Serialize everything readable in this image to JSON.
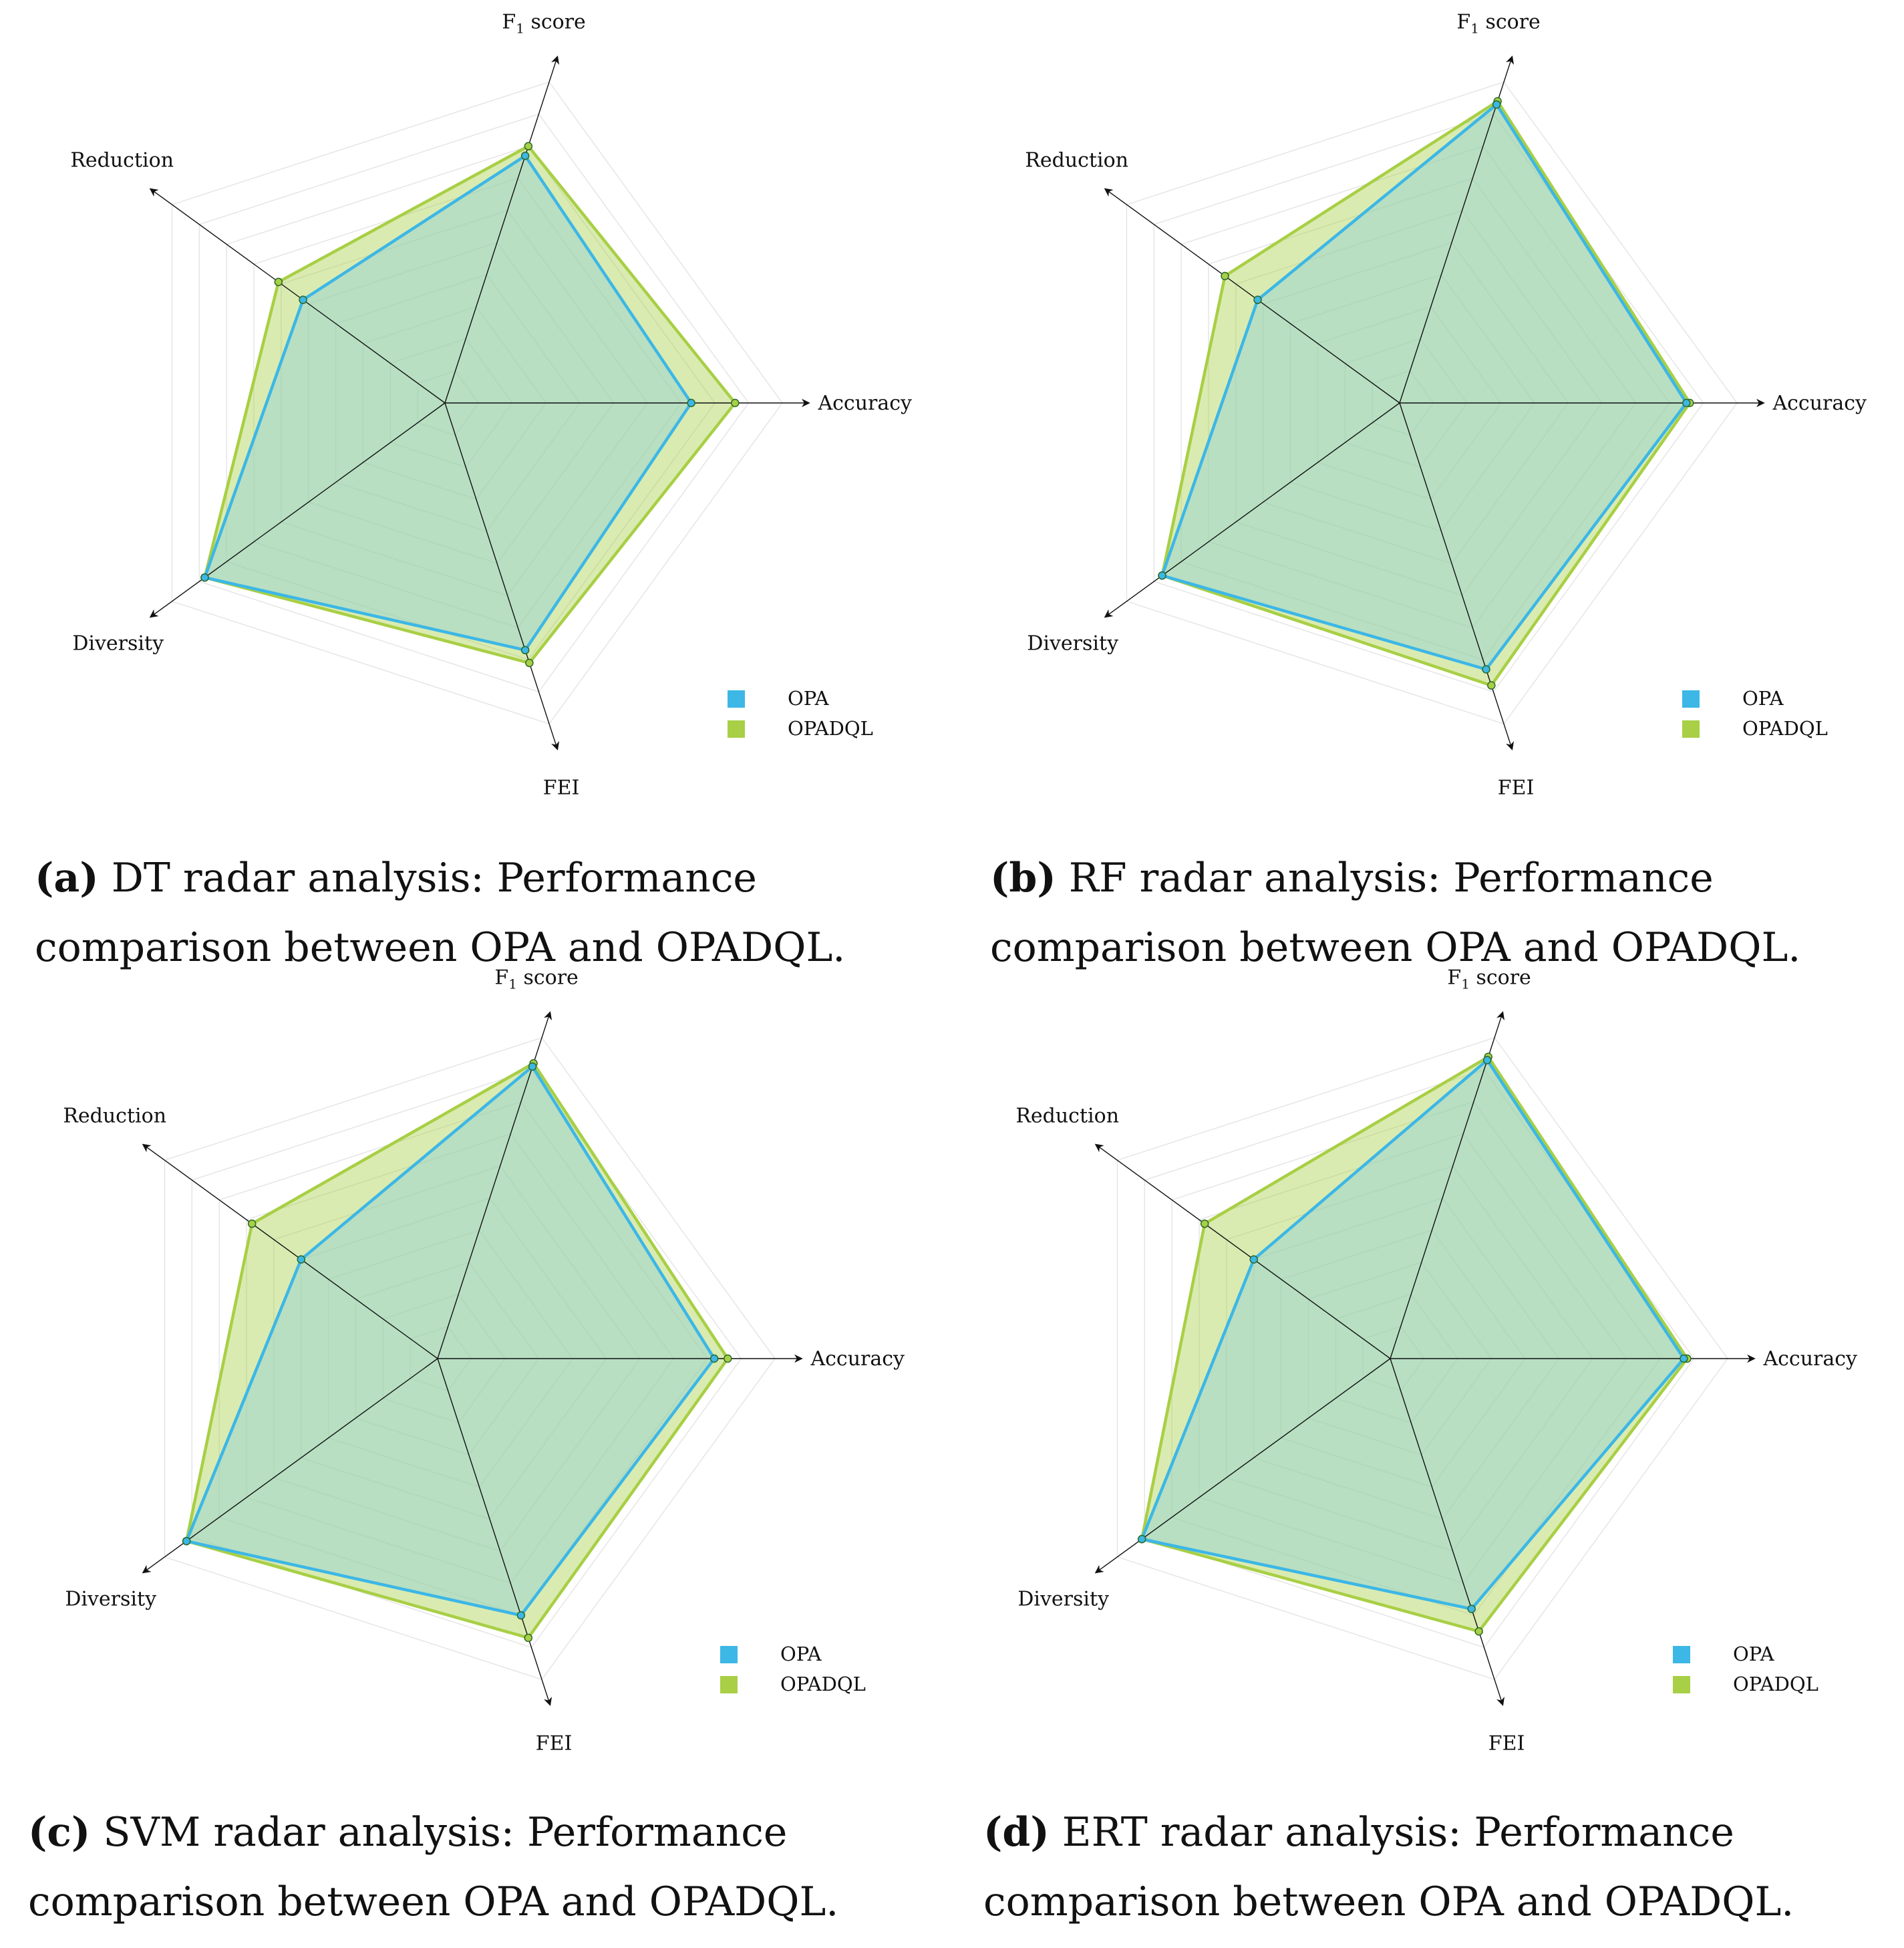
{
  "axes": [
    "Accuracy",
    "F1 score",
    "Reduction",
    "Diversity",
    "FEI"
  ],
  "axis_labels": {
    "Accuracy": "Accuracy",
    "F1": "F",
    "F1_sub": "1",
    "F1_rest": " score",
    "Reduction": "Reduction",
    "Diversity": "Diversity",
    "FEI": "FEI"
  },
  "colors": {
    "OPA": "#3cb7e6",
    "OPADQL": "#a8cf45",
    "overlap": "#b7dcc8"
  },
  "chart_data": [
    {
      "id": "a",
      "type": "radar",
      "title": "DT radar analysis",
      "axes": [
        "Accuracy",
        "F1 score",
        "Reduction",
        "Diversity",
        "FEI"
      ],
      "range": [
        0,
        1.0
      ],
      "series": [
        {
          "name": "OPA",
          "values": [
            0.73,
            0.77,
            0.52,
            0.88,
            0.77
          ]
        },
        {
          "name": "OPADQL",
          "values": [
            0.86,
            0.8,
            0.61,
            0.88,
            0.81
          ]
        }
      ],
      "legend": [
        "OPA",
        "OPADQL"
      ]
    },
    {
      "id": "b",
      "type": "radar",
      "title": "RF radar analysis",
      "axes": [
        "Accuracy",
        "F1 score",
        "Reduction",
        "Diversity",
        "FEI"
      ],
      "range": [
        0,
        1.0
      ],
      "series": [
        {
          "name": "OPA",
          "values": [
            0.85,
            0.93,
            0.52,
            0.87,
            0.83
          ]
        },
        {
          "name": "OPADQL",
          "values": [
            0.86,
            0.94,
            0.64,
            0.87,
            0.88
          ]
        }
      ],
      "legend": [
        "OPA",
        "OPADQL"
      ]
    },
    {
      "id": "c",
      "type": "radar",
      "title": "SVM radar analysis",
      "axes": [
        "Accuracy",
        "F1 score",
        "Reduction",
        "Diversity",
        "FEI"
      ],
      "range": [
        0,
        1.0
      ],
      "series": [
        {
          "name": "OPA",
          "values": [
            0.82,
            0.91,
            0.5,
            0.92,
            0.8
          ]
        },
        {
          "name": "OPADQL",
          "values": [
            0.86,
            0.92,
            0.68,
            0.92,
            0.87
          ]
        }
      ],
      "legend": [
        "OPA",
        "OPADQL"
      ]
    },
    {
      "id": "d",
      "type": "radar",
      "title": "ERT radar analysis",
      "axes": [
        "Accuracy",
        "F1 score",
        "Reduction",
        "Diversity",
        "FEI"
      ],
      "range": [
        0,
        1.0
      ],
      "series": [
        {
          "name": "OPA",
          "values": [
            0.87,
            0.93,
            0.5,
            0.91,
            0.78
          ]
        },
        {
          "name": "OPADQL",
          "values": [
            0.88,
            0.94,
            0.68,
            0.91,
            0.85
          ]
        }
      ],
      "legend": [
        "OPA",
        "OPADQL"
      ]
    }
  ],
  "captions": {
    "a": {
      "tag": "(a)",
      "text": " DT radar analysis: Performance comparison between OPA and OPADQL."
    },
    "b": {
      "tag": "(b)",
      "text": " RF radar analysis: Performance comparison between OPA and OPADQL."
    },
    "c": {
      "tag": "(c)",
      "text": " SVM radar analysis: Performance comparison between OPA and OPADQL."
    },
    "d": {
      "tag": "(d)",
      "text": " ERT radar analysis: Performance comparison between OPA and OPADQL."
    }
  }
}
